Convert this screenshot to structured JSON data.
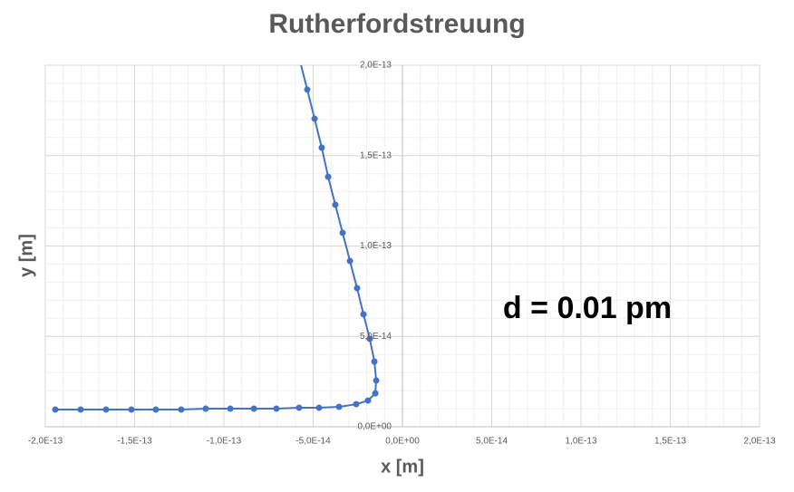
{
  "chart_data": {
    "type": "scatter-line",
    "title": "Rutherfordstreuung",
    "x_label": "x [m]",
    "y_label": "y [m]",
    "annotation": "d = 0.01 pm",
    "color": "#4472c4",
    "grid": true,
    "minor_grid_step": 1e-14,
    "xlim": [
      -2e-13,
      2e-13
    ],
    "ylim": [
      0,
      2e-13
    ],
    "xticks": [
      {
        "value": -2e-13,
        "label": "-2,0E-13"
      },
      {
        "value": -1.5e-13,
        "label": "-1,5E-13"
      },
      {
        "value": -1e-13,
        "label": "-1,0E-13"
      },
      {
        "value": -5e-14,
        "label": "-5,0E-14"
      },
      {
        "value": 0,
        "label": "0,0E+00"
      },
      {
        "value": 5e-14,
        "label": "5,0E-14"
      },
      {
        "value": 1e-13,
        "label": "1,0E-13"
      },
      {
        "value": 1.5e-13,
        "label": "1,5E-13"
      },
      {
        "value": 2e-13,
        "label": "2,0E-13"
      }
    ],
    "yticks": [
      {
        "value": 0,
        "label": "0,0E+00"
      },
      {
        "value": 5e-14,
        "label": "5,0E-14"
      },
      {
        "value": 1e-13,
        "label": "1,0E-13"
      },
      {
        "value": 1.5e-13,
        "label": "1,5E-13"
      },
      {
        "value": 2e-13,
        "label": "2,0E-13"
      }
    ],
    "x": [
      -1.944e-13,
      -1.802e-13,
      -1.66e-13,
      -1.518e-13,
      -1.381e-13,
      -1.239e-13,
      -1.102e-13,
      -9.64e-14,
      -8.32e-14,
      -7.06e-14,
      -5.79e-14,
      -4.67e-14,
      -3.55e-14,
      -2.59e-14,
      -1.93e-14,
      -1.52e-14,
      -1.47e-14,
      -1.57e-14,
      -1.83e-14,
      -2.18e-14,
      -2.54e-14,
      -2.94e-14,
      -3.35e-14,
      -3.76e-14,
      -4.16e-14,
      -4.52e-14,
      -4.92e-14,
      -5.33e-14,
      -5.74e-14
    ],
    "y": [
      9.5e-15,
      9.5e-15,
      9.5e-15,
      9.5e-15,
      9.5e-15,
      9.5e-15,
      1e-14,
      1e-14,
      1e-14,
      1e-14,
      1.05e-14,
      1.05e-14,
      1.1e-14,
      1.25e-14,
      1.45e-14,
      1.85e-14,
      2.56e-14,
      3.61e-14,
      4.86e-14,
      6.22e-14,
      7.67e-14,
      9.17e-14,
      1.073e-13,
      1.228e-13,
      1.383e-13,
      1.544e-13,
      1.704e-13,
      1.865e-13,
      2.025e-13
    ]
  }
}
